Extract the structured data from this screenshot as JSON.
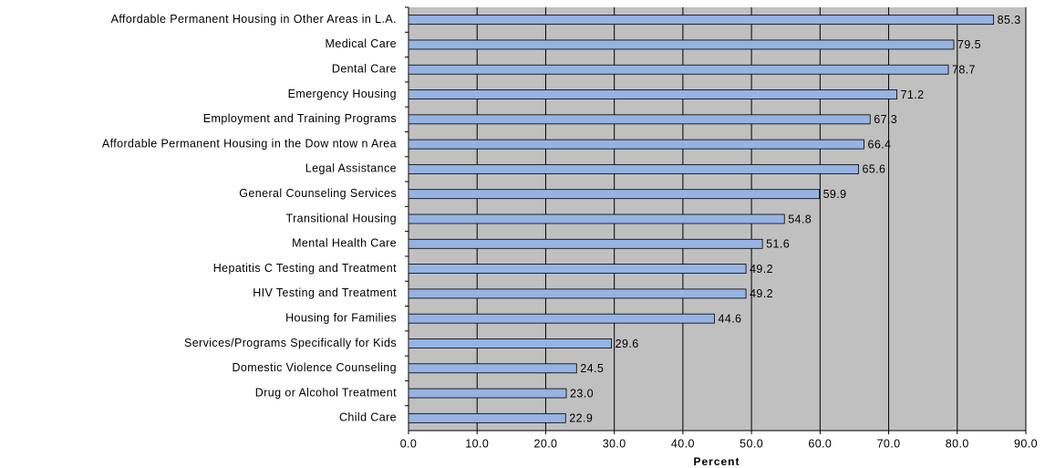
{
  "chart_data": {
    "type": "bar",
    "orientation": "horizontal",
    "x_label": "Percent",
    "categories": [
      "Affordable Permanent Housing in Other Areas in L.A.",
      "Medical Care",
      "Dental Care",
      "Emergency Housing",
      "Employment and Training Programs",
      "Affordable Permanent Housing in the Dow ntow n Area",
      "Legal Assistance",
      "General Counseling Services",
      "Transitional Housing",
      "Mental Health Care",
      "Hepatitis C Testing and Treatment",
      "HIV Testing and Treatment",
      "Housing for Families",
      "Services/Programs Specifically for Kids",
      "Domestic Violence Counseling",
      "Drug or Alcohol Treatment",
      "Child Care"
    ],
    "values": [
      85.3,
      79.5,
      78.7,
      71.2,
      67.3,
      66.4,
      65.6,
      59.9,
      54.8,
      51.6,
      49.2,
      49.2,
      44.6,
      29.6,
      24.5,
      23.0,
      22.9
    ],
    "value_labels": [
      "85.3",
      "79.5",
      "78.7",
      "71.2",
      "67.3",
      "66.4",
      "65.6",
      "59.9",
      "54.8",
      "51.6",
      "49.2",
      "49.2",
      "44.6",
      "29.6",
      "24.5",
      "23.0",
      "22.9"
    ],
    "color": "#95b3e3",
    "xlim": [
      0,
      90
    ],
    "xticks": [
      {
        "value": 0,
        "label": "0.0"
      },
      {
        "value": 10,
        "label": "10.0"
      },
      {
        "value": 20,
        "label": "20.0"
      },
      {
        "value": 30,
        "label": "30.0"
      },
      {
        "value": 40,
        "label": "40.0"
      },
      {
        "value": 50,
        "label": "50.0"
      },
      {
        "value": 60,
        "label": "60.0"
      },
      {
        "value": 70,
        "label": "70.0"
      },
      {
        "value": 80,
        "label": "80.0"
      },
      {
        "value": 90,
        "label": "90.0"
      }
    ],
    "grid": true
  }
}
